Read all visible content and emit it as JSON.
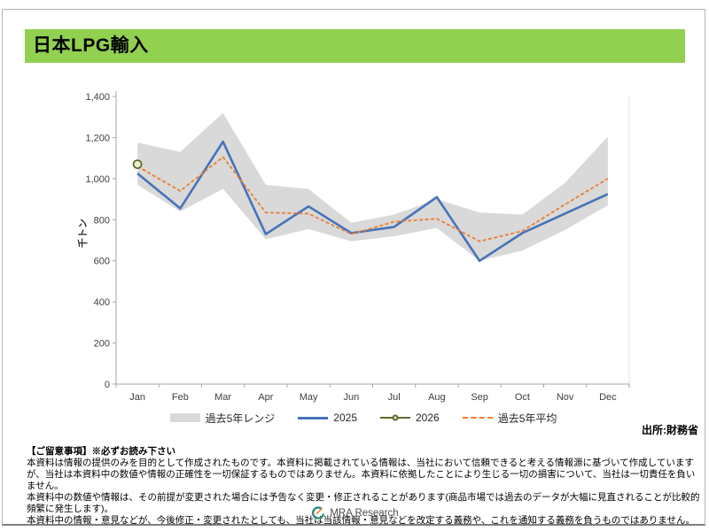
{
  "page": {
    "title": "日本LPG輸入",
    "source": "出所:財務省"
  },
  "chart_data": {
    "type": "line",
    "title": "日本LPG輸入",
    "xlabel": "",
    "ylabel": "千トン",
    "ylim": [
      0,
      1400
    ],
    "ytick_step": 200,
    "grid": false,
    "legend_position": "bottom",
    "categories": [
      "Jan",
      "Feb",
      "Mar",
      "Apr",
      "May",
      "Jun",
      "Jul",
      "Aug",
      "Sep",
      "Oct",
      "Nov",
      "Dec"
    ],
    "series": [
      {
        "name": "過去5年レンジ",
        "type": "band",
        "color": "#D9D9D9",
        "low": [
          970,
          840,
          950,
          705,
          755,
          695,
          720,
          760,
          600,
          650,
          750,
          870
        ],
        "high": [
          1175,
          1130,
          1320,
          970,
          950,
          785,
          825,
          900,
          835,
          825,
          980,
          1205
        ]
      },
      {
        "name": "2025",
        "type": "line",
        "color": "#4673B8",
        "values": [
          1025,
          855,
          1180,
          730,
          865,
          735,
          765,
          910,
          600,
          735,
          830,
          925
        ]
      },
      {
        "name": "2026",
        "type": "marker-line",
        "color": "#5E6B2B",
        "marker_fill": "#EFEDD4",
        "values": [
          1070,
          null,
          null,
          null,
          null,
          null,
          null,
          null,
          null,
          null,
          null,
          null
        ]
      },
      {
        "name": "過去5年平均",
        "type": "dashed-line",
        "color": "#ED7D31",
        "values": [
          1060,
          940,
          1105,
          835,
          830,
          730,
          790,
          805,
          695,
          745,
          875,
          1000
        ]
      }
    ]
  },
  "disclaimer": {
    "heading": "【ご留意事項】※必ずお読み下さい",
    "paragraphs": [
      "本資料は情報の提供のみを目的として作成されたものです。本資料に掲載されている情報は、当社において信頼できると考える情報源に基づいて作成していますが、当社は本資料中の数値や情報の正確性を一切保証するものではありません。本資料に依拠したことにより生じる一切の損害について、当社は一切責任を負いません。",
      "本資料中の数値や情報は、その前提が変更された場合には予告なく変更・修正されることがあります(商品市場では過去のデータが大幅に見直されることが比較的頻繁に発生します)。",
      "本資料中の情報・意見などが、今後修正・変更されたとしても、当社は当該情報・意見などを改定する義務や、これを通知する義務を負うものではありません。"
    ]
  },
  "footer": {
    "logo_text": "MRA Research"
  },
  "colors": {
    "banner_green": "#92D050",
    "band_gray": "#D9D9D9",
    "line_2025_blue": "#4673B8",
    "line_2026_olive": "#5E6B2B",
    "marker_fill": "#EFEDD4",
    "avg_orange": "#ED7D31",
    "axis_gray": "#A6A6A6"
  }
}
